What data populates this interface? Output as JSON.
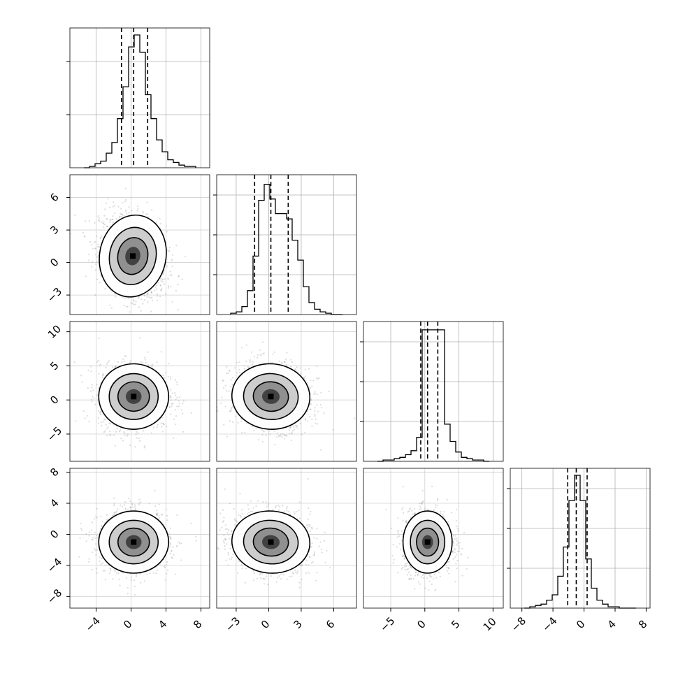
{
  "chart_data": {
    "type": "corner",
    "title": "",
    "variables": [
      {
        "range": [
          -7,
          9
        ],
        "ticks": [
          -4,
          0,
          4,
          8
        ],
        "tick_labels": [
          "−4",
          "0",
          "4",
          "8"
        ],
        "quantiles": [
          -1.1,
          0.3,
          1.9
        ]
      },
      {
        "range": [
          -4.8,
          8.1
        ],
        "ticks": [
          -3,
          0,
          3,
          6
        ],
        "tick_labels": [
          "−3",
          "0",
          "3",
          "6"
        ],
        "quantiles": [
          -1.3,
          0.2,
          1.8
        ]
      },
      {
        "range": [
          -9,
          11.5
        ],
        "ticks": [
          -5,
          0,
          5,
          10
        ],
        "tick_labels": [
          "−5",
          "0",
          "5",
          "10"
        ],
        "quantiles": [
          -0.6,
          0.4,
          1.9
        ]
      },
      {
        "range": [
          -9.5,
          8.5
        ],
        "ticks": [
          -8,
          -4,
          0,
          4,
          8
        ],
        "tick_labels": [
          "−8",
          "−4",
          "0",
          "4",
          "8"
        ],
        "quantiles": [
          -2.1,
          -1.0,
          0.4
        ]
      }
    ],
    "histograms": [
      {
        "counts": [
          0,
          0.01,
          0.03,
          0.05,
          0.11,
          0.19,
          0.37,
          0.61,
          0.91,
          1.0,
          0.87,
          0.55,
          0.37,
          0.21,
          0.12,
          0.06,
          0.04,
          0.02,
          0.01,
          0.01
        ],
        "yticks": [
          0.4,
          0.8
        ]
      },
      {
        "counts": [
          0.01,
          0.02,
          0.06,
          0.18,
          0.44,
          0.86,
          0.98,
          0.87,
          0.76,
          0.76,
          0.72,
          0.56,
          0.41,
          0.21,
          0.09,
          0.04,
          0.02,
          0.01,
          0,
          0
        ],
        "yticks": [
          0.3,
          0.6,
          0.9
        ]
      },
      {
        "counts": [
          0,
          0.01,
          0.01,
          0.02,
          0.03,
          0.05,
          0.08,
          0.18,
          0.99,
          0.99,
          0.99,
          0.99,
          0.28,
          0.15,
          0.07,
          0.03,
          0.02,
          0.01,
          0.01,
          0
        ],
        "yticks": [
          0.3,
          0.6,
          0.9
        ]
      },
      {
        "counts": [
          0,
          0.01,
          0.02,
          0.03,
          0.06,
          0.1,
          0.24,
          0.46,
          0.81,
          1.0,
          0.81,
          0.37,
          0.15,
          0.06,
          0.03,
          0.01,
          0.01,
          0,
          0,
          0
        ],
        "yticks": [
          0.3,
          0.6,
          0.9
        ]
      }
    ],
    "pairs": [
      {
        "x": 0,
        "y": 1,
        "center": [
          0.2,
          0.6
        ],
        "sd": [
          1.9,
          1.9
        ],
        "rho": -0.25
      },
      {
        "x": 0,
        "y": 2,
        "center": [
          0.3,
          0.5
        ],
        "sd": [
          2.0,
          2.4
        ],
        "rho": 0.0
      },
      {
        "x": 1,
        "y": 2,
        "center": [
          0.2,
          0.5
        ],
        "sd": [
          1.8,
          2.4
        ],
        "rho": -0.1
      },
      {
        "x": 0,
        "y": 3,
        "center": [
          0.3,
          -1.0
        ],
        "sd": [
          2.0,
          2.0
        ],
        "rho": 0.0
      },
      {
        "x": 1,
        "y": 3,
        "center": [
          0.2,
          -1.0
        ],
        "sd": [
          1.8,
          2.0
        ],
        "rho": -0.1
      },
      {
        "x": 2,
        "y": 3,
        "center": [
          0.4,
          -1.0
        ],
        "sd": [
          1.8,
          2.0
        ],
        "rho": 0.0
      }
    ],
    "grid": true,
    "quantile_lines": "dashed"
  }
}
